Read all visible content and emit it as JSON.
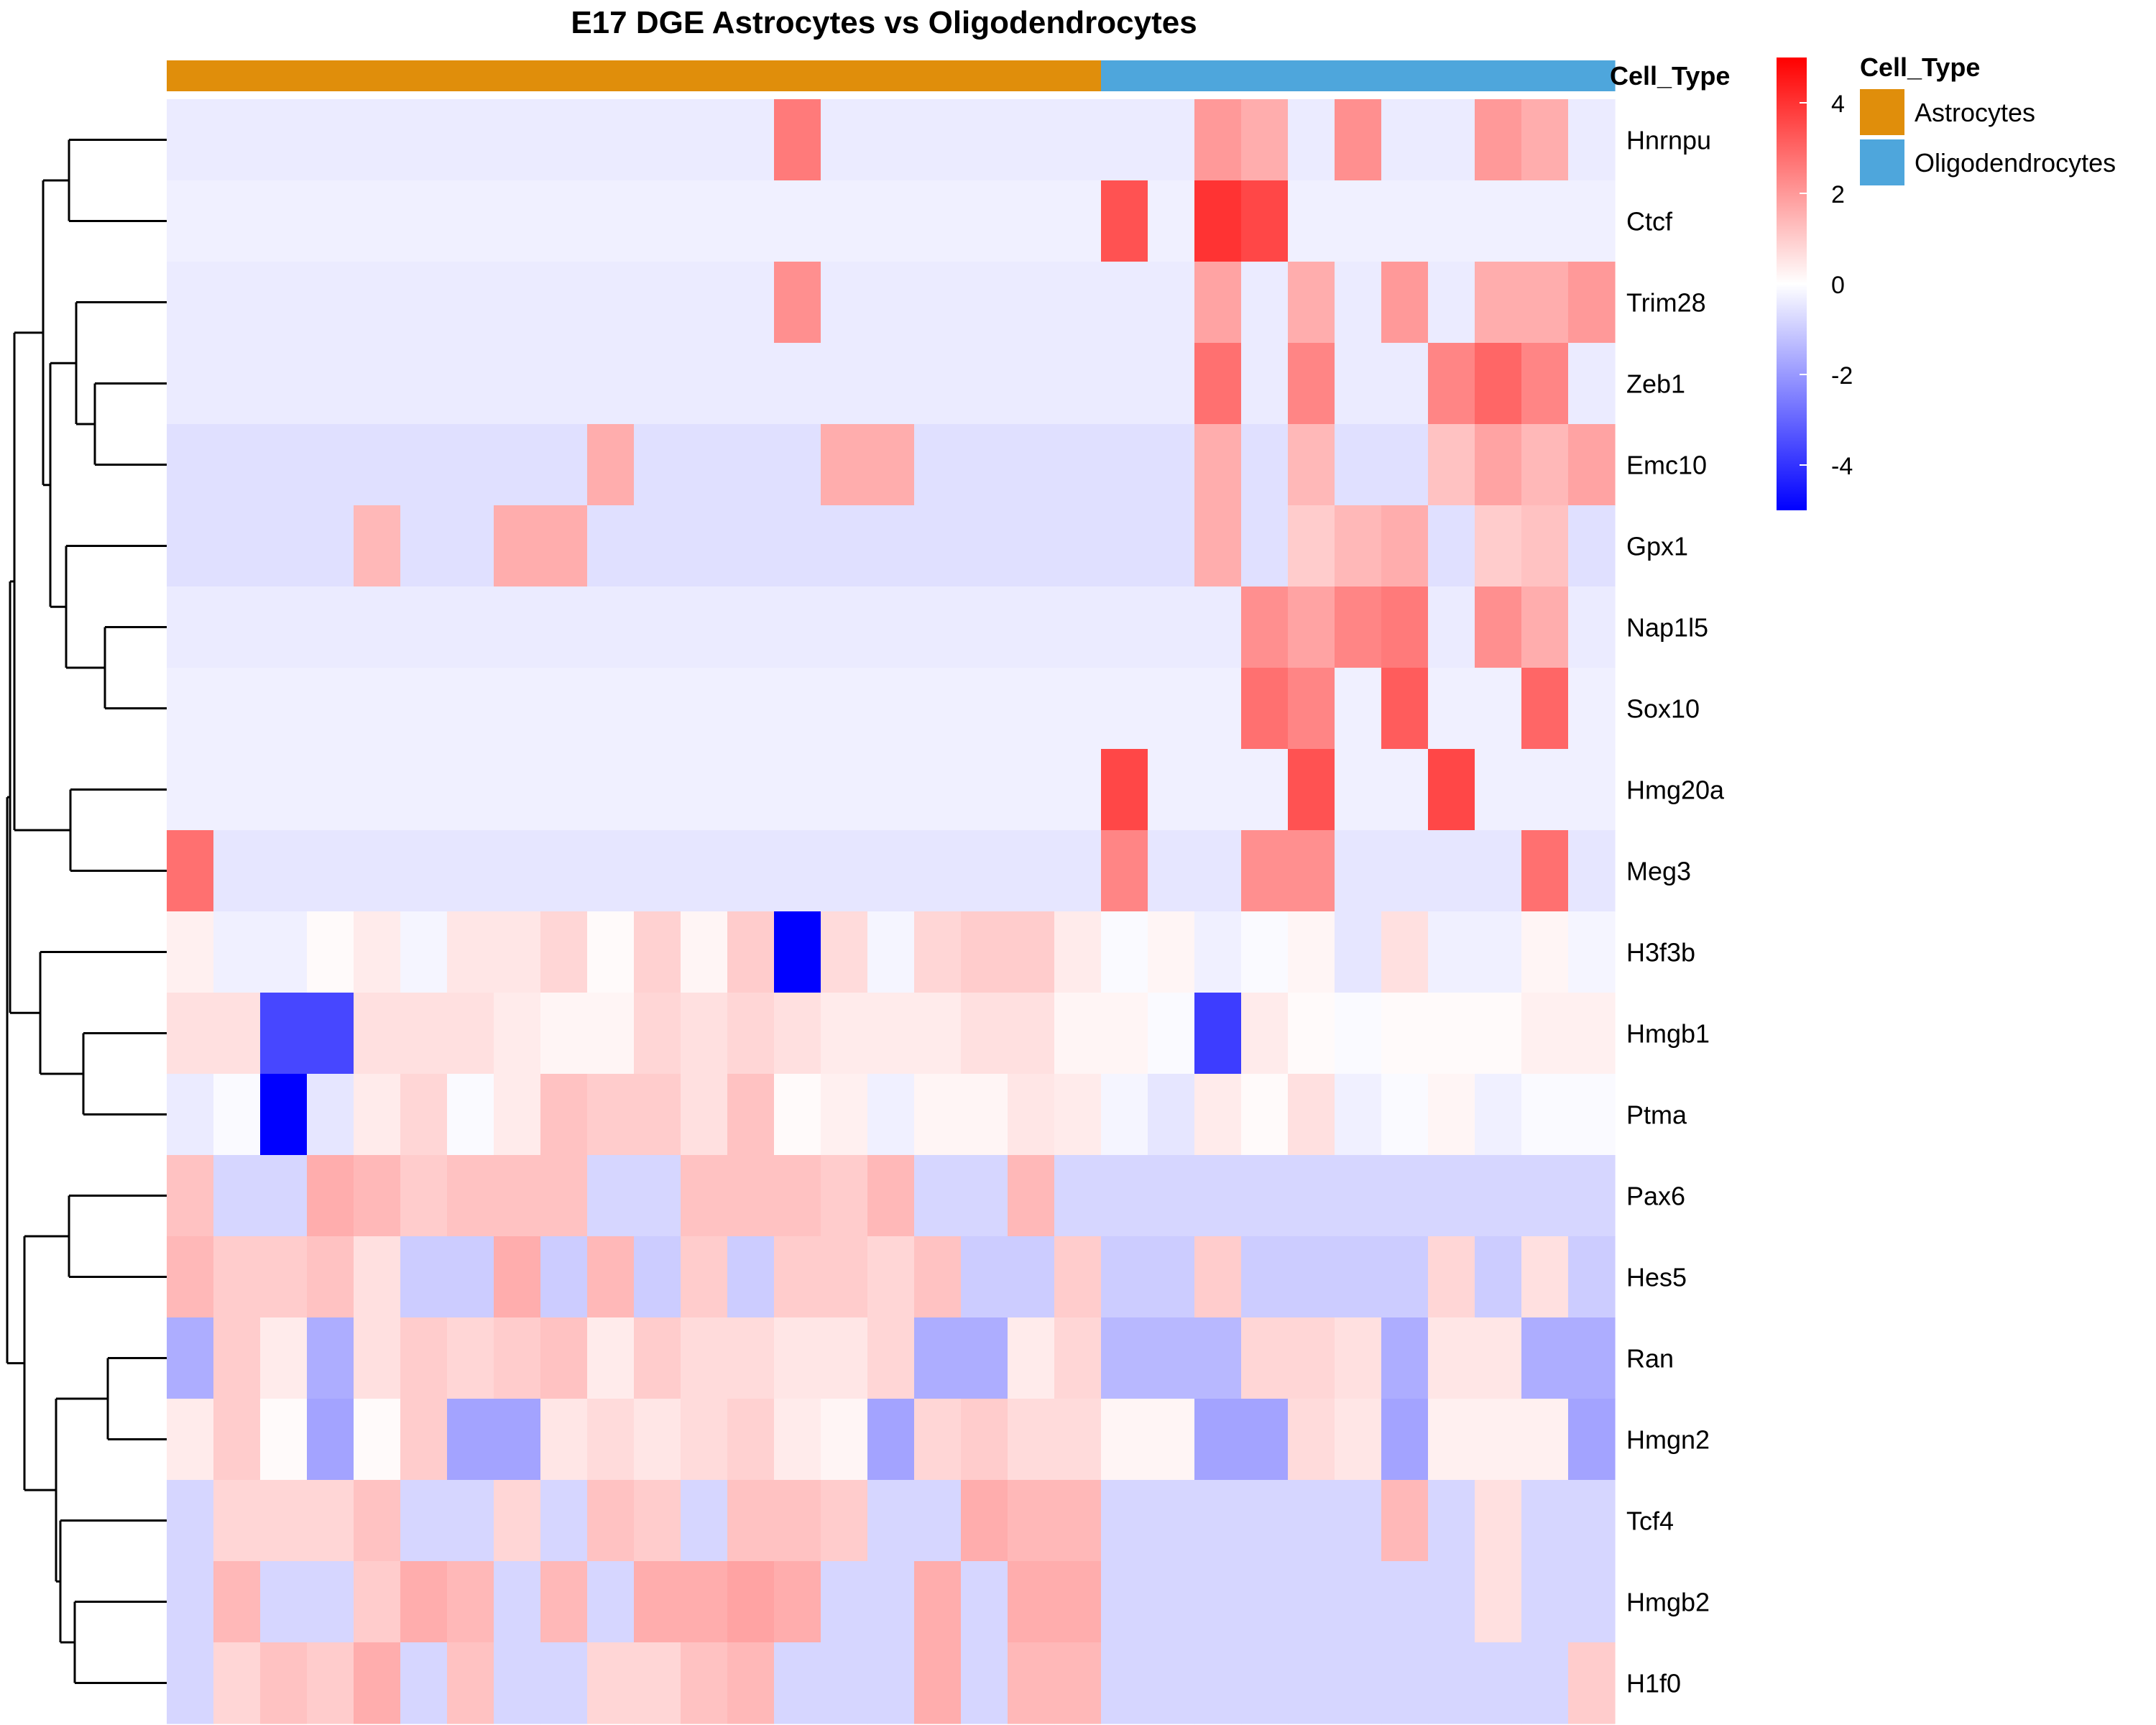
{
  "colors": {
    "astrocytes": "#E08E0B",
    "oligodendrocytes": "#4EA6DC",
    "scale_low": "#0000FF",
    "scale_mid": "#FFFFFF",
    "scale_high": "#FF0000"
  },
  "chart_data": {
    "type": "heatmap",
    "title": "E17 DGE Astrocytes vs Oligodendrocytes",
    "annotation": {
      "label": "Cell_Type",
      "columns": [
        "Astrocytes",
        "Astrocytes",
        "Astrocytes",
        "Astrocytes",
        "Astrocytes",
        "Astrocytes",
        "Astrocytes",
        "Astrocytes",
        "Astrocytes",
        "Astrocytes",
        "Astrocytes",
        "Astrocytes",
        "Astrocytes",
        "Astrocytes",
        "Astrocytes",
        "Astrocytes",
        "Astrocytes",
        "Astrocytes",
        "Astrocytes",
        "Astrocytes",
        "Oligodendrocytes",
        "Oligodendrocytes",
        "Oligodendrocytes",
        "Oligodendrocytes",
        "Oligodendrocytes",
        "Oligodendrocytes",
        "Oligodendrocytes",
        "Oligodendrocytes",
        "Oligodendrocytes",
        "Oligodendrocytes",
        "Oligodendrocytes"
      ]
    },
    "legend": {
      "title": "Cell_Type",
      "entries": [
        {
          "label": "Astrocytes",
          "color": "#E08E0B"
        },
        {
          "label": "Oligodendrocytes",
          "color": "#4EA6DC"
        }
      ],
      "placement": "top-right"
    },
    "color_scale": {
      "min": -5,
      "max": 5,
      "ticks": [
        "4",
        "2",
        "0",
        "-2",
        "-4"
      ],
      "tick_values": [
        4,
        2,
        0,
        -2,
        -4
      ]
    },
    "rows": [
      "Hnrnpu",
      "Ctcf",
      "Trim28",
      "Zeb1",
      "Emc10",
      "Gpx1",
      "Nap1l5",
      "Sox10",
      "Hmg20a",
      "Meg3",
      "H3f3b",
      "Hmgb1",
      "Ptma",
      "Pax6",
      "Hes5",
      "Ran",
      "Hmgn2",
      "Tcf4",
      "Hmgb2",
      "H1f0"
    ],
    "values": [
      [
        -0.4,
        -0.4,
        -0.4,
        -0.4,
        -0.4,
        -0.4,
        -0.4,
        -0.4,
        -0.4,
        -0.4,
        -0.4,
        -0.4,
        -0.4,
        2.6,
        -0.4,
        -0.4,
        -0.4,
        -0.4,
        -0.4,
        -0.4,
        -0.4,
        -0.4,
        2.0,
        1.6,
        -0.4,
        2.2,
        -0.4,
        -0.4,
        2.0,
        1.6,
        -0.4
      ],
      [
        -0.3,
        -0.3,
        -0.3,
        -0.3,
        -0.3,
        -0.3,
        -0.3,
        -0.3,
        -0.3,
        -0.3,
        -0.3,
        -0.3,
        -0.3,
        -0.3,
        -0.3,
        -0.3,
        -0.3,
        -0.3,
        -0.3,
        -0.3,
        3.4,
        -0.3,
        4.0,
        3.6,
        -0.3,
        -0.3,
        -0.3,
        -0.3,
        -0.3,
        -0.3,
        -0.3
      ],
      [
        -0.4,
        -0.4,
        -0.4,
        -0.4,
        -0.4,
        -0.4,
        -0.4,
        -0.4,
        -0.4,
        -0.4,
        -0.4,
        -0.4,
        -0.4,
        2.2,
        -0.4,
        -0.4,
        -0.4,
        -0.4,
        -0.4,
        -0.4,
        -0.4,
        -0.4,
        1.8,
        -0.4,
        1.6,
        -0.4,
        2.0,
        -0.4,
        1.6,
        1.6,
        2.0
      ],
      [
        -0.4,
        -0.4,
        -0.4,
        -0.4,
        -0.4,
        -0.4,
        -0.4,
        -0.4,
        -0.4,
        -0.4,
        -0.4,
        -0.4,
        -0.4,
        -0.4,
        -0.4,
        -0.4,
        -0.4,
        -0.4,
        -0.4,
        -0.4,
        -0.4,
        -0.4,
        2.8,
        -0.4,
        2.4,
        -0.4,
        -0.4,
        2.4,
        3.0,
        2.4,
        -0.4
      ],
      [
        -0.6,
        -0.6,
        -0.6,
        -0.6,
        -0.6,
        -0.6,
        -0.6,
        -0.6,
        -0.6,
        1.6,
        -0.6,
        -0.6,
        -0.6,
        -0.6,
        1.6,
        1.6,
        -0.6,
        -0.6,
        -0.6,
        -0.6,
        -0.6,
        -0.6,
        1.6,
        -0.6,
        1.4,
        -0.6,
        -0.6,
        1.2,
        1.8,
        1.4,
        1.8
      ],
      [
        -0.6,
        -0.6,
        -0.6,
        -0.6,
        1.4,
        -0.6,
        -0.6,
        1.6,
        1.6,
        -0.6,
        -0.6,
        -0.6,
        -0.6,
        -0.6,
        -0.6,
        -0.6,
        -0.6,
        -0.6,
        -0.6,
        -0.6,
        -0.6,
        -0.6,
        1.6,
        -0.6,
        1.0,
        1.4,
        1.6,
        -0.6,
        1.0,
        1.2,
        -0.6
      ],
      [
        -0.4,
        -0.4,
        -0.4,
        -0.4,
        -0.4,
        -0.4,
        -0.4,
        -0.4,
        -0.4,
        -0.4,
        -0.4,
        -0.4,
        -0.4,
        -0.4,
        -0.4,
        -0.4,
        -0.4,
        -0.4,
        -0.4,
        -0.4,
        -0.4,
        -0.4,
        -0.4,
        2.2,
        1.8,
        2.4,
        2.6,
        -0.4,
        2.2,
        1.6,
        -0.4
      ],
      [
        -0.3,
        -0.3,
        -0.3,
        -0.3,
        -0.3,
        -0.3,
        -0.3,
        -0.3,
        -0.3,
        -0.3,
        -0.3,
        -0.3,
        -0.3,
        -0.3,
        -0.3,
        -0.3,
        -0.3,
        -0.3,
        -0.3,
        -0.3,
        -0.3,
        -0.3,
        -0.3,
        2.8,
        2.4,
        -0.3,
        3.2,
        -0.3,
        -0.3,
        3.0,
        -0.3
      ],
      [
        -0.3,
        -0.3,
        -0.3,
        -0.3,
        -0.3,
        -0.3,
        -0.3,
        -0.3,
        -0.3,
        -0.3,
        -0.3,
        -0.3,
        -0.3,
        -0.3,
        -0.3,
        -0.3,
        -0.3,
        -0.3,
        -0.3,
        -0.3,
        3.6,
        -0.3,
        -0.3,
        -0.3,
        3.4,
        -0.3,
        -0.3,
        3.6,
        -0.3,
        -0.3,
        -0.3
      ],
      [
        2.8,
        -0.5,
        -0.5,
        -0.5,
        -0.5,
        -0.5,
        -0.5,
        -0.5,
        -0.5,
        -0.5,
        -0.5,
        -0.5,
        -0.5,
        -0.5,
        -0.5,
        -0.5,
        -0.5,
        -0.5,
        -0.5,
        -0.5,
        2.4,
        -0.5,
        -0.5,
        2.2,
        2.2,
        -0.5,
        -0.5,
        -0.5,
        -0.5,
        2.8,
        -0.5
      ],
      [
        0.3,
        -0.3,
        -0.3,
        0.1,
        0.4,
        -0.2,
        0.5,
        0.5,
        0.8,
        0.1,
        0.9,
        0.2,
        1.0,
        -5.0,
        0.7,
        -0.2,
        0.8,
        1.0,
        1.0,
        0.4,
        -0.1,
        0.2,
        -0.3,
        -0.1,
        0.2,
        -0.5,
        0.6,
        -0.3,
        -0.3,
        0.2,
        -0.2
      ],
      [
        0.6,
        0.6,
        -3.6,
        -3.6,
        0.6,
        0.6,
        0.6,
        0.4,
        0.2,
        0.2,
        0.8,
        0.6,
        0.8,
        0.6,
        0.4,
        0.4,
        0.4,
        0.6,
        0.6,
        0.2,
        0.2,
        -0.1,
        -3.8,
        0.4,
        0.1,
        -0.1,
        0.1,
        0.1,
        0.1,
        0.3,
        0.3
      ],
      [
        -0.4,
        -0.1,
        -5.0,
        -0.5,
        0.4,
        0.8,
        -0.1,
        0.4,
        1.2,
        1.0,
        1.0,
        0.6,
        1.2,
        0.1,
        0.3,
        -0.3,
        0.2,
        0.2,
        0.5,
        0.4,
        -0.2,
        -0.5,
        0.4,
        0.1,
        0.6,
        -0.3,
        -0.1,
        0.2,
        -0.3,
        -0.1,
        -0.1
      ],
      [
        1.2,
        -0.8,
        -0.8,
        1.6,
        1.4,
        1.0,
        1.2,
        1.2,
        1.2,
        -0.8,
        -0.8,
        1.2,
        1.2,
        1.2,
        1.0,
        1.4,
        -0.8,
        -0.8,
        1.4,
        -0.8,
        -0.8,
        -0.8,
        -0.8,
        -0.8,
        -0.8,
        -0.8,
        -0.8,
        -0.8,
        -0.8,
        -0.8,
        -0.8
      ],
      [
        1.4,
        1.0,
        1.0,
        1.2,
        0.6,
        -1.0,
        -1.0,
        1.6,
        -1.0,
        1.4,
        -1.0,
        1.0,
        -1.0,
        1.0,
        1.0,
        0.8,
        1.2,
        -1.0,
        -1.0,
        1.0,
        -1.0,
        -1.0,
        1.0,
        -1.0,
        -1.0,
        -1.0,
        -1.0,
        0.8,
        -1.0,
        0.6,
        -1.0
      ],
      [
        -1.6,
        1.0,
        0.4,
        -1.6,
        0.6,
        1.0,
        0.8,
        1.0,
        1.2,
        0.4,
        1.0,
        0.7,
        0.7,
        0.5,
        0.5,
        0.8,
        -1.6,
        -1.6,
        0.4,
        0.8,
        -1.4,
        -1.4,
        -1.4,
        0.8,
        0.8,
        0.6,
        -1.6,
        0.5,
        0.5,
        -1.6,
        -1.6
      ],
      [
        0.4,
        1.0,
        0.1,
        -1.8,
        0.1,
        1.0,
        -1.8,
        -1.8,
        0.5,
        0.7,
        0.5,
        0.7,
        0.9,
        0.4,
        0.2,
        -1.8,
        0.8,
        1.0,
        0.7,
        0.7,
        0.2,
        0.2,
        -1.8,
        -1.8,
        0.7,
        0.5,
        -1.8,
        0.3,
        0.3,
        0.3,
        -1.8
      ],
      [
        -0.8,
        0.8,
        0.8,
        0.8,
        1.2,
        -0.8,
        -0.8,
        0.8,
        -0.8,
        1.2,
        1.0,
        -0.8,
        1.2,
        1.2,
        1.0,
        -0.8,
        -0.8,
        1.6,
        1.4,
        1.4,
        -0.8,
        -0.8,
        -0.8,
        -0.8,
        -0.8,
        -0.8,
        1.4,
        -0.8,
        0.6,
        -0.8,
        -0.8
      ],
      [
        -0.8,
        1.4,
        -0.8,
        -0.8,
        1.0,
        1.6,
        1.4,
        -0.8,
        1.4,
        -0.8,
        1.6,
        1.6,
        1.8,
        1.6,
        -0.8,
        -0.8,
        1.6,
        -0.8,
        1.6,
        1.6,
        -0.8,
        -0.8,
        -0.8,
        -0.8,
        -0.8,
        -0.8,
        -0.8,
        -0.8,
        0.6,
        -0.8,
        -0.8
      ],
      [
        -0.8,
        0.8,
        1.2,
        1.0,
        1.6,
        -0.8,
        1.2,
        -0.8,
        -0.8,
        0.8,
        0.8,
        1.2,
        1.4,
        -0.8,
        -0.8,
        -0.8,
        1.6,
        -0.8,
        1.4,
        1.4,
        -0.8,
        -0.8,
        -0.8,
        -0.8,
        -0.8,
        -0.8,
        -0.8,
        -0.8,
        -0.8,
        -0.8,
        1.0
      ]
    ],
    "row_dendrogram": "hierarchical clustering tree (left)"
  }
}
